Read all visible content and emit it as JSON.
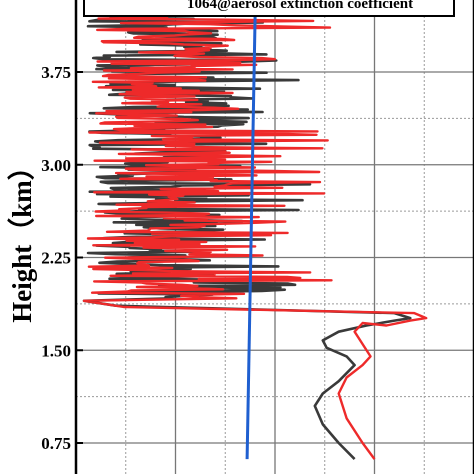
{
  "chart_data": {
    "type": "line",
    "title": "1064@aerosol extinction coefficient",
    "xlabel": "",
    "ylabel": "Height（km）",
    "ylim": [
      0.62,
      4.2
    ],
    "yticks": [
      0.75,
      1.5,
      2.25,
      3.0,
      3.75
    ],
    "yticklabels": [
      "0.75",
      "1.50",
      "2.25",
      "3.00",
      "3.75"
    ],
    "grid": true,
    "colors": {
      "black": "#3a3a3a",
      "red": "#ee2a2a",
      "blue": "#1f5fd0"
    },
    "series": [
      {
        "color": "#3a3a3a",
        "x": [
          0.7,
          0.66,
          0.62,
          0.6,
          0.62,
          0.66,
          0.7,
          0.68,
          0.63,
          0.62,
          0.66,
          0.73,
          0.8,
          0.84,
          0.8
        ],
        "y": [
          0.62,
          0.75,
          0.9,
          1.05,
          1.15,
          1.25,
          1.38,
          1.45,
          1.52,
          1.58,
          1.65,
          1.7,
          1.74,
          1.76,
          1.8
        ]
      },
      {
        "color": "#ee2a2a",
        "x": [
          0.75,
          0.72,
          0.68,
          0.66,
          0.68,
          0.72,
          0.74,
          0.72,
          0.7,
          0.72,
          0.78,
          0.84,
          0.88,
          0.85
        ],
        "y": [
          0.62,
          0.75,
          0.95,
          1.15,
          1.28,
          1.38,
          1.45,
          1.55,
          1.65,
          1.72,
          1.7,
          1.74,
          1.76,
          1.8
        ]
      },
      {
        "color": "#1f5fd0",
        "x": [
          0.43,
          0.45
        ],
        "y": [
          0.62,
          4.2
        ]
      }
    ]
  }
}
